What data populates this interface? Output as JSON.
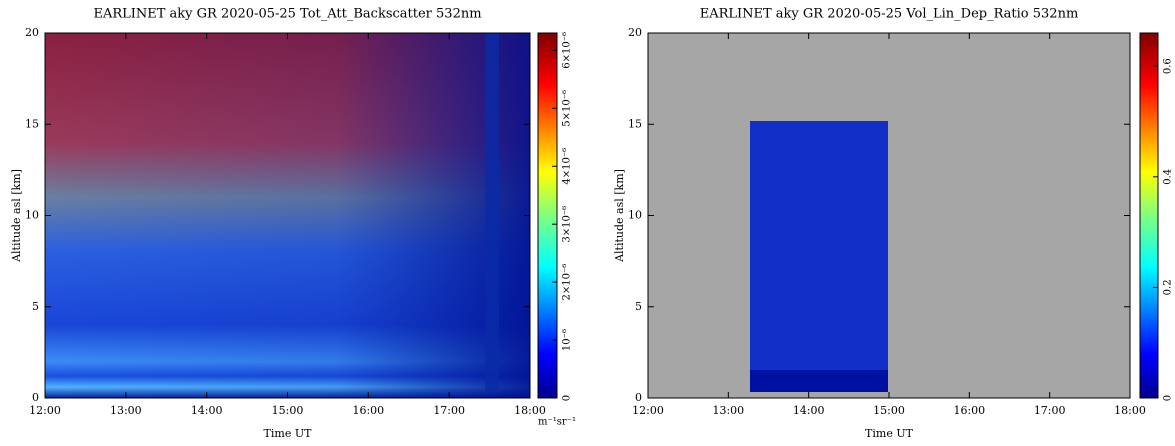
{
  "chart_data": [
    {
      "type": "heatmap",
      "title": "EARLINET aky GR 2020-05-25 Tot_Att_Backscatter 532nm",
      "xlabel": "Time UT",
      "ylabel": "Altitude asl [km]",
      "xlim": [
        12,
        18
      ],
      "xticks": [
        {
          "value": 12,
          "label": "12:00"
        },
        {
          "value": 13,
          "label": "13:00"
        },
        {
          "value": 14,
          "label": "14:00"
        },
        {
          "value": 15,
          "label": "15:00"
        },
        {
          "value": 16,
          "label": "16:00"
        },
        {
          "value": 17,
          "label": "17:00"
        },
        {
          "value": 18,
          "label": "18:00"
        }
      ],
      "ylim": [
        0,
        20
      ],
      "yticks": [
        0,
        5,
        10,
        15,
        20
      ],
      "colorbar": {
        "lim": [
          0,
          6.3e-06
        ],
        "label": "m⁻¹sr⁻¹",
        "ticks": [
          0,
          {
            "value": 1e-06,
            "label": "10⁻⁶"
          },
          {
            "value": 2e-06,
            "label": "2×10⁻⁶"
          },
          {
            "value": 3e-06,
            "label": "3×10⁻⁶"
          },
          {
            "value": 4e-06,
            "label": "4×10⁻⁶"
          },
          {
            "value": 5e-06,
            "label": "5×10⁻⁶"
          },
          {
            "value": 6e-06,
            "label": "6×10⁻⁶"
          }
        ]
      }
    },
    {
      "type": "heatmap",
      "title": "EARLINET aky GR 2020-05-25 Vol_Lin_Dep_Ratio 532nm",
      "xlabel": "Time UT",
      "ylabel": "Altitude asl [km]",
      "xlim": [
        12,
        18
      ],
      "xticks": [
        {
          "value": 12,
          "label": "12:00"
        },
        {
          "value": 13,
          "label": "13:00"
        },
        {
          "value": 14,
          "label": "14:00"
        },
        {
          "value": 15,
          "label": "15:00"
        },
        {
          "value": 16,
          "label": "16:00"
        },
        {
          "value": 17,
          "label": "17:00"
        },
        {
          "value": 18,
          "label": "18:00"
        }
      ],
      "ylim": [
        0,
        20
      ],
      "yticks": [
        0,
        5,
        10,
        15,
        20
      ],
      "colorbar": {
        "lim": [
          0,
          0.66
        ],
        "ticks": [
          0,
          0.2,
          0.4,
          0.6
        ]
      }
    }
  ]
}
